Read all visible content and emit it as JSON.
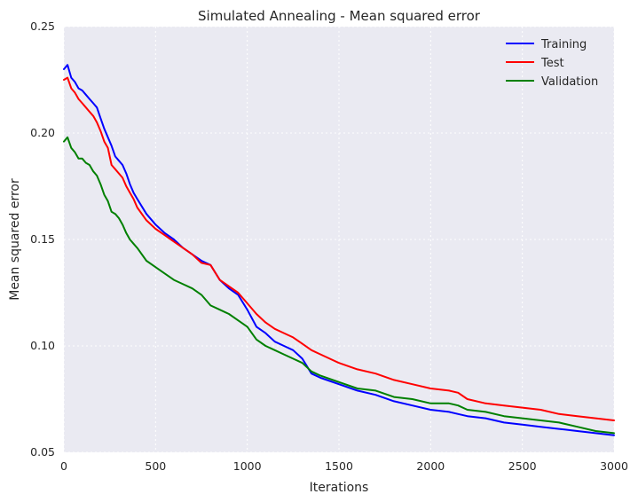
{
  "chart_data": {
    "type": "line",
    "title": "Simulated Annealing - Mean squared error",
    "xlabel": "Iterations",
    "ylabel": "Mean squared error",
    "xlim": [
      0,
      3000
    ],
    "ylim": [
      0.05,
      0.25
    ],
    "xticks": [
      0,
      500,
      1000,
      1500,
      2000,
      2500,
      3000
    ],
    "xtick_labels": [
      "0",
      "500",
      "1000",
      "1500",
      "2000",
      "2500",
      "3000"
    ],
    "yticks": [
      0.05,
      0.1,
      0.15,
      0.2,
      0.25
    ],
    "ytick_labels": [
      "0.05",
      "0.10",
      "0.15",
      "0.20",
      "0.25"
    ],
    "grid": true,
    "legend_position": "top-right",
    "x": [
      0,
      20,
      40,
      60,
      80,
      100,
      120,
      140,
      160,
      180,
      200,
      220,
      240,
      260,
      280,
      300,
      320,
      340,
      360,
      380,
      400,
      450,
      500,
      550,
      600,
      650,
      700,
      750,
      800,
      850,
      900,
      950,
      1000,
      1050,
      1100,
      1150,
      1200,
      1250,
      1300,
      1350,
      1400,
      1500,
      1600,
      1700,
      1800,
      1900,
      2000,
      2100,
      2150,
      2200,
      2300,
      2400,
      2500,
      2600,
      2700,
      2800,
      2900,
      3000
    ],
    "series": [
      {
        "name": "Training",
        "color": "#0000ff",
        "values": [
          0.23,
          0.232,
          0.226,
          0.224,
          0.221,
          0.22,
          0.218,
          0.216,
          0.214,
          0.212,
          0.207,
          0.202,
          0.198,
          0.194,
          0.189,
          0.187,
          0.185,
          0.181,
          0.176,
          0.172,
          0.169,
          0.162,
          0.157,
          0.153,
          0.15,
          0.146,
          0.143,
          0.14,
          0.138,
          0.131,
          0.127,
          0.124,
          0.117,
          0.109,
          0.106,
          0.102,
          0.1,
          0.098,
          0.094,
          0.087,
          0.085,
          0.082,
          0.079,
          0.077,
          0.074,
          0.072,
          0.07,
          0.069,
          0.068,
          0.067,
          0.066,
          0.064,
          0.063,
          0.062,
          0.061,
          0.06,
          0.059,
          0.058
        ]
      },
      {
        "name": "Test",
        "color": "#ff0000",
        "values": [
          0.225,
          0.226,
          0.221,
          0.219,
          0.216,
          0.214,
          0.212,
          0.21,
          0.208,
          0.205,
          0.201,
          0.196,
          0.193,
          0.185,
          0.183,
          0.181,
          0.179,
          0.175,
          0.172,
          0.169,
          0.165,
          0.159,
          0.155,
          0.152,
          0.149,
          0.146,
          0.143,
          0.139,
          0.138,
          0.131,
          0.128,
          0.125,
          0.12,
          0.115,
          0.111,
          0.108,
          0.106,
          0.104,
          0.101,
          0.098,
          0.096,
          0.092,
          0.089,
          0.087,
          0.084,
          0.082,
          0.08,
          0.079,
          0.078,
          0.075,
          0.073,
          0.072,
          0.071,
          0.07,
          0.068,
          0.067,
          0.066,
          0.065
        ]
      },
      {
        "name": "Validation",
        "color": "#008000",
        "values": [
          0.196,
          0.198,
          0.193,
          0.191,
          0.188,
          0.188,
          0.186,
          0.185,
          0.182,
          0.18,
          0.176,
          0.171,
          0.168,
          0.163,
          0.162,
          0.16,
          0.157,
          0.153,
          0.15,
          0.148,
          0.146,
          0.14,
          0.137,
          0.134,
          0.131,
          0.129,
          0.127,
          0.124,
          0.119,
          0.117,
          0.115,
          0.112,
          0.109,
          0.103,
          0.1,
          0.098,
          0.096,
          0.094,
          0.092,
          0.088,
          0.086,
          0.083,
          0.08,
          0.079,
          0.076,
          0.075,
          0.073,
          0.073,
          0.072,
          0.07,
          0.069,
          0.067,
          0.066,
          0.065,
          0.064,
          0.062,
          0.06,
          0.059
        ]
      }
    ]
  }
}
